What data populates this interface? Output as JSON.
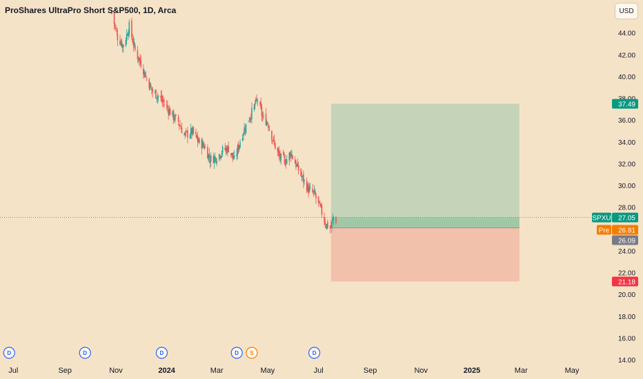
{
  "header": {
    "title": "ProShares UltraPro Short S&P500, 1D, Arca",
    "currency_label": "USD"
  },
  "colors": {
    "background": "#f5e3c8",
    "up": "#26a69a",
    "down": "#ef5350",
    "profit_zone": "#c5d4b8",
    "loss_zone": "#f2c1ab",
    "entry_tag": "#787b86",
    "pre_tag": "#f57c00",
    "price_tag": "#089981",
    "target_tag": "#089981",
    "stop_tag": "#f23645",
    "dividend": "#2962ff",
    "split": "#f57c00"
  },
  "chart_data": {
    "type": "candlestick",
    "symbol": "SPXU",
    "ylim": [
      14,
      46
    ],
    "yticks": [
      14,
      16,
      18,
      20,
      22,
      24,
      26,
      28,
      30,
      32,
      34,
      36,
      38,
      40,
      42,
      44
    ],
    "ytick_labels": [
      "14.00",
      "16.00",
      "18.00",
      "20.00",
      "22.00",
      "24.00",
      "26.00",
      "28.00",
      "30.00",
      "32.00",
      "34.00",
      "36.00",
      "38.00",
      "40.00",
      "42.00",
      "44.00"
    ],
    "x_start": "2023-06-15",
    "x_end": "2025-05-25",
    "xticks": [
      {
        "date": "2023-07-01",
        "label": "Jul",
        "bold": false
      },
      {
        "date": "2023-09-01",
        "label": "Sep",
        "bold": false
      },
      {
        "date": "2023-11-01",
        "label": "Nov",
        "bold": false
      },
      {
        "date": "2024-01-01",
        "label": "2024",
        "bold": true
      },
      {
        "date": "2024-03-01",
        "label": "Mar",
        "bold": false
      },
      {
        "date": "2024-05-01",
        "label": "May",
        "bold": false
      },
      {
        "date": "2024-07-01",
        "label": "Jul",
        "bold": false
      },
      {
        "date": "2024-09-01",
        "label": "Sep",
        "bold": false
      },
      {
        "date": "2024-11-01",
        "label": "Nov",
        "bold": false
      },
      {
        "date": "2025-01-01",
        "label": "2025",
        "bold": true
      },
      {
        "date": "2025-03-01",
        "label": "Mar",
        "bold": false
      },
      {
        "date": "2025-05-01",
        "label": "May",
        "bold": false
      }
    ],
    "price_path": [
      [
        "2023-10-27",
        45.8
      ],
      [
        "2023-11-03",
        43.6
      ],
      [
        "2023-11-10",
        42.8
      ],
      [
        "2023-11-17",
        44.6
      ],
      [
        "2023-11-24",
        42.4
      ],
      [
        "2023-12-01",
        41.2
      ],
      [
        "2023-12-08",
        39.8
      ],
      [
        "2023-12-15",
        38.6
      ],
      [
        "2023-12-22",
        38.2
      ],
      [
        "2024-01-01",
        37.2
      ],
      [
        "2024-01-08",
        36.4
      ],
      [
        "2024-01-15",
        35.8
      ],
      [
        "2024-01-22",
        34.6
      ],
      [
        "2024-02-01",
        34.9
      ],
      [
        "2024-02-08",
        34.0
      ],
      [
        "2024-02-15",
        33.6
      ],
      [
        "2024-02-22",
        32.4
      ],
      [
        "2024-03-01",
        32.6
      ],
      [
        "2024-03-08",
        33.2
      ],
      [
        "2024-03-15",
        33.4
      ],
      [
        "2024-03-22",
        32.3
      ],
      [
        "2024-04-01",
        34.8
      ],
      [
        "2024-04-10",
        36.4
      ],
      [
        "2024-04-19",
        37.9
      ],
      [
        "2024-04-25",
        36.2
      ],
      [
        "2024-05-01",
        35.8
      ],
      [
        "2024-05-08",
        34.0
      ],
      [
        "2024-05-15",
        32.6
      ],
      [
        "2024-05-22",
        32.2
      ],
      [
        "2024-05-29",
        33.0
      ],
      [
        "2024-06-04",
        31.9
      ],
      [
        "2024-06-12",
        30.6
      ],
      [
        "2024-06-19",
        29.6
      ],
      [
        "2024-06-26",
        29.2
      ],
      [
        "2024-07-03",
        27.9
      ],
      [
        "2024-07-10",
        26.4
      ],
      [
        "2024-07-16",
        26.1
      ],
      [
        "2024-07-19",
        27.1
      ],
      [
        "2024-07-22",
        26.8
      ]
    ],
    "events": [
      {
        "date": "2023-06-26",
        "letter": "D",
        "type": "dividend"
      },
      {
        "date": "2023-09-25",
        "letter": "D",
        "type": "dividend"
      },
      {
        "date": "2023-12-26",
        "letter": "D",
        "type": "dividend"
      },
      {
        "date": "2024-03-25",
        "letter": "D",
        "type": "dividend"
      },
      {
        "date": "2024-04-12",
        "letter": "S",
        "type": "split"
      },
      {
        "date": "2024-06-26",
        "letter": "D",
        "type": "dividend"
      }
    ],
    "position": {
      "start_date": "2024-07-16",
      "end_date": "2025-02-27",
      "entry": 26.09,
      "target": 37.49,
      "stop": 21.18,
      "current": 27.05
    },
    "price_tags": {
      "target": "37.49",
      "symbol": "SPXU",
      "current": "27.05",
      "pre_label": "Pre",
      "pre": "26.81",
      "entry": "26.09",
      "stop": "21.18"
    }
  }
}
